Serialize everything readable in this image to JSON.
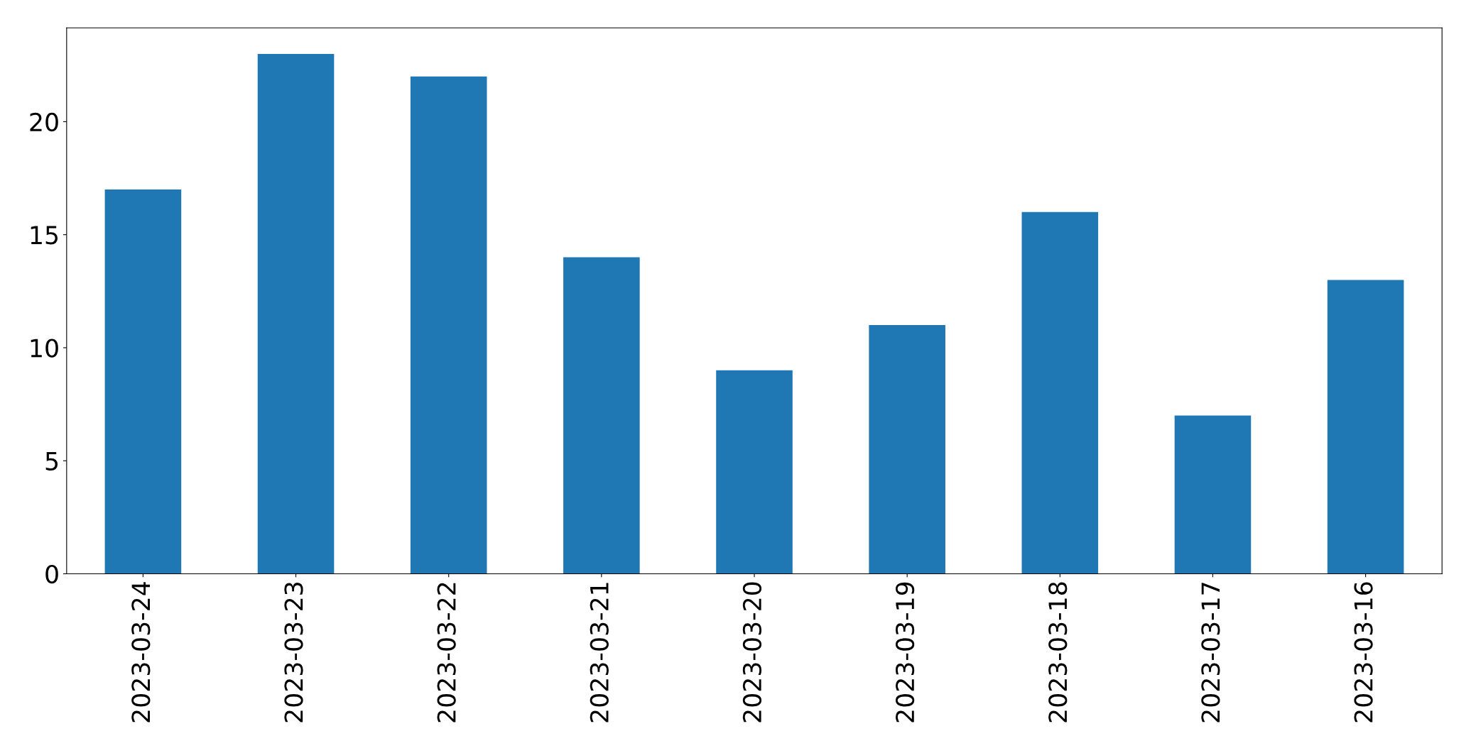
{
  "chart_data": {
    "type": "bar",
    "categories": [
      "2023-03-24",
      "2023-03-23",
      "2023-03-22",
      "2023-03-21",
      "2023-03-20",
      "2023-03-19",
      "2023-03-18",
      "2023-03-17",
      "2023-03-16"
    ],
    "values": [
      17,
      23,
      22,
      14,
      9,
      11,
      16,
      7,
      13
    ],
    "color": "#1f77b4",
    "ylim": [
      0,
      24.15
    ],
    "yticks": [
      0,
      5,
      10,
      15,
      20
    ],
    "grid": false
  }
}
